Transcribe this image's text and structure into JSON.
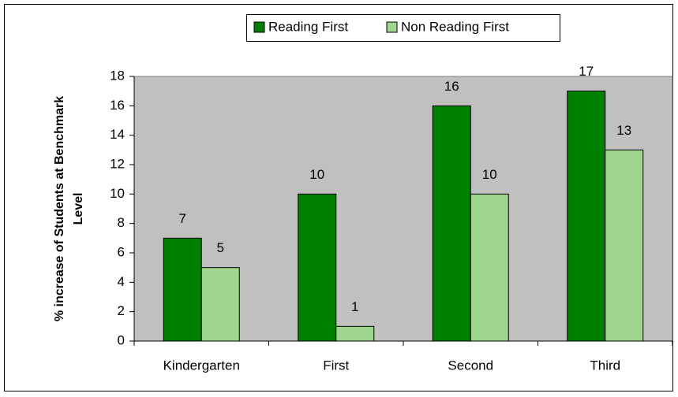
{
  "chart_data": {
    "type": "bar",
    "y_label": "% increase of Students at Benchmark Level",
    "categories": [
      "Kindergarten",
      "First",
      "Second",
      "Third"
    ],
    "series": [
      {
        "name": "Reading First",
        "color": "#008000",
        "values": [
          7,
          10,
          16,
          17
        ]
      },
      {
        "name": "Non Reading First",
        "color": "#9fd68f",
        "values": [
          5,
          1,
          10,
          13
        ]
      }
    ],
    "ylim": [
      0,
      18
    ],
    "yticks": [
      0,
      2,
      4,
      6,
      8,
      10,
      12,
      14,
      16,
      18
    ],
    "legend": "top"
  }
}
